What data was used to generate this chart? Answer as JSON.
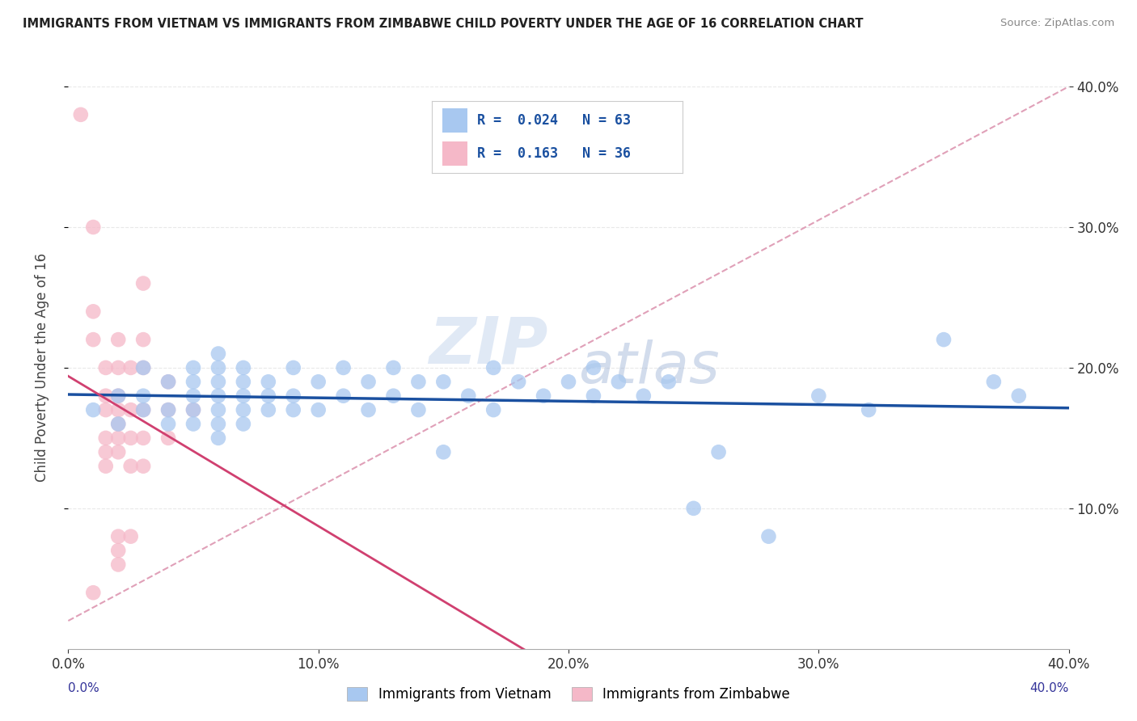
{
  "title": "IMMIGRANTS FROM VIETNAM VS IMMIGRANTS FROM ZIMBABWE CHILD POVERTY UNDER THE AGE OF 16 CORRELATION CHART",
  "source": "Source: ZipAtlas.com",
  "ylabel": "Child Poverty Under the Age of 16",
  "xlim": [
    0.0,
    0.4
  ],
  "ylim": [
    0.0,
    0.4
  ],
  "xtick_vals": [
    0.0,
    0.1,
    0.2,
    0.3,
    0.4
  ],
  "ytick_vals": [
    0.1,
    0.2,
    0.3,
    0.4
  ],
  "R_vietnam": 0.024,
  "N_vietnam": 63,
  "R_zimbabwe": 0.163,
  "N_zimbabwe": 36,
  "vietnam_color": "#a8c8f0",
  "zimbabwe_color": "#f5b8c8",
  "vietnam_line_color": "#1a50a0",
  "zimbabwe_line_color": "#d04070",
  "dash_line_color": "#e0a0b8",
  "background_color": "#ffffff",
  "grid_color": "#e8e8e8",
  "vietnam_scatter": [
    [
      0.01,
      0.17
    ],
    [
      0.02,
      0.18
    ],
    [
      0.02,
      0.16
    ],
    [
      0.03,
      0.2
    ],
    [
      0.03,
      0.18
    ],
    [
      0.03,
      0.17
    ],
    [
      0.04,
      0.19
    ],
    [
      0.04,
      0.17
    ],
    [
      0.04,
      0.16
    ],
    [
      0.05,
      0.2
    ],
    [
      0.05,
      0.19
    ],
    [
      0.05,
      0.18
    ],
    [
      0.05,
      0.17
    ],
    [
      0.05,
      0.16
    ],
    [
      0.06,
      0.21
    ],
    [
      0.06,
      0.2
    ],
    [
      0.06,
      0.19
    ],
    [
      0.06,
      0.18
    ],
    [
      0.06,
      0.17
    ],
    [
      0.06,
      0.16
    ],
    [
      0.06,
      0.15
    ],
    [
      0.07,
      0.2
    ],
    [
      0.07,
      0.19
    ],
    [
      0.07,
      0.18
    ],
    [
      0.07,
      0.17
    ],
    [
      0.07,
      0.16
    ],
    [
      0.08,
      0.19
    ],
    [
      0.08,
      0.18
    ],
    [
      0.08,
      0.17
    ],
    [
      0.09,
      0.2
    ],
    [
      0.09,
      0.18
    ],
    [
      0.09,
      0.17
    ],
    [
      0.1,
      0.19
    ],
    [
      0.1,
      0.17
    ],
    [
      0.11,
      0.2
    ],
    [
      0.11,
      0.18
    ],
    [
      0.12,
      0.19
    ],
    [
      0.12,
      0.17
    ],
    [
      0.13,
      0.2
    ],
    [
      0.13,
      0.18
    ],
    [
      0.14,
      0.19
    ],
    [
      0.14,
      0.17
    ],
    [
      0.15,
      0.19
    ],
    [
      0.15,
      0.14
    ],
    [
      0.16,
      0.18
    ],
    [
      0.17,
      0.2
    ],
    [
      0.17,
      0.17
    ],
    [
      0.18,
      0.19
    ],
    [
      0.19,
      0.18
    ],
    [
      0.2,
      0.19
    ],
    [
      0.21,
      0.2
    ],
    [
      0.21,
      0.18
    ],
    [
      0.22,
      0.19
    ],
    [
      0.23,
      0.18
    ],
    [
      0.24,
      0.19
    ],
    [
      0.25,
      0.1
    ],
    [
      0.26,
      0.14
    ],
    [
      0.28,
      0.08
    ],
    [
      0.3,
      0.18
    ],
    [
      0.32,
      0.17
    ],
    [
      0.35,
      0.22
    ],
    [
      0.37,
      0.19
    ],
    [
      0.38,
      0.18
    ]
  ],
  "zimbabwe_scatter": [
    [
      0.005,
      0.38
    ],
    [
      0.01,
      0.3
    ],
    [
      0.01,
      0.24
    ],
    [
      0.01,
      0.22
    ],
    [
      0.015,
      0.2
    ],
    [
      0.015,
      0.18
    ],
    [
      0.015,
      0.17
    ],
    [
      0.015,
      0.15
    ],
    [
      0.015,
      0.14
    ],
    [
      0.015,
      0.13
    ],
    [
      0.02,
      0.22
    ],
    [
      0.02,
      0.2
    ],
    [
      0.02,
      0.18
    ],
    [
      0.02,
      0.17
    ],
    [
      0.02,
      0.16
    ],
    [
      0.02,
      0.15
    ],
    [
      0.02,
      0.14
    ],
    [
      0.02,
      0.08
    ],
    [
      0.02,
      0.07
    ],
    [
      0.02,
      0.06
    ],
    [
      0.025,
      0.2
    ],
    [
      0.025,
      0.17
    ],
    [
      0.025,
      0.15
    ],
    [
      0.025,
      0.13
    ],
    [
      0.025,
      0.08
    ],
    [
      0.03,
      0.26
    ],
    [
      0.03,
      0.22
    ],
    [
      0.03,
      0.2
    ],
    [
      0.03,
      0.17
    ],
    [
      0.03,
      0.15
    ],
    [
      0.03,
      0.13
    ],
    [
      0.04,
      0.19
    ],
    [
      0.04,
      0.17
    ],
    [
      0.04,
      0.15
    ],
    [
      0.05,
      0.17
    ],
    [
      0.01,
      0.04
    ]
  ],
  "watermark_zip": "ZIP",
  "watermark_atlas": "atlas",
  "legend_bottom_labels": [
    "Immigrants from Vietnam",
    "Immigrants from Zimbabwe"
  ]
}
